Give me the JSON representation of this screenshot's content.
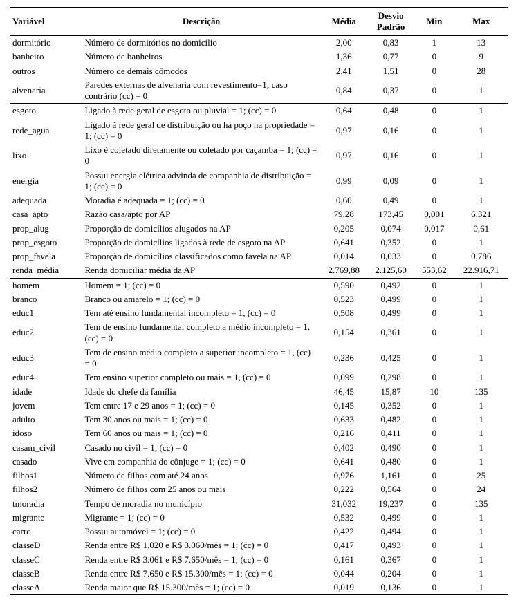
{
  "headers": {
    "variavel": "Variável",
    "descricao": "Descrição",
    "media": "Média",
    "desvio_top": "Desvio",
    "desvio_bot": "Padrão",
    "min": "Min",
    "max": "Max"
  },
  "rows": [
    {
      "var": "dormitório",
      "desc": "Número de dormitórios no domicílio",
      "media": "2,00",
      "dp": "0,83",
      "min": "1",
      "max": "13",
      "section_end": false
    },
    {
      "var": "banheiro",
      "desc": "Número de banheiros",
      "media": "1,36",
      "dp": "0,77",
      "min": "0",
      "max": "9",
      "section_end": false
    },
    {
      "var": "outros",
      "desc": "Número de demais cômodos",
      "media": "2,41",
      "dp": "1,51",
      "min": "0",
      "max": "28",
      "section_end": false
    },
    {
      "var": "alvenaria",
      "desc": "Paredes externas de alvenaria com revestimento=1; caso contrário (cc) = 0",
      "media": "0,84",
      "dp": "0,37",
      "min": "0",
      "max": "1",
      "section_end": true
    },
    {
      "var": "esgoto",
      "desc": "Ligado à rede geral de esgoto ou pluvial = 1; (cc) = 0",
      "media": "0,64",
      "dp": "0,48",
      "min": "0",
      "max": "1",
      "section_end": false
    },
    {
      "var": "rede_agua",
      "desc": "Ligado à rede geral de distribuição ou há poço na propriedade = 1; (cc) = 0",
      "media": "0,97",
      "dp": "0,16",
      "min": "0",
      "max": "1",
      "section_end": false
    },
    {
      "var": "lixo",
      "desc": "Lixo é coletado diretamente ou coletado por caçamba = 1; (cc) = 0",
      "media": "0,97",
      "dp": "0,16",
      "min": "0",
      "max": "1",
      "section_end": false
    },
    {
      "var": "energia",
      "desc": "Possui energia elétrica advinda de companhia de distribuição = 1; (cc) = 0",
      "media": "0,99",
      "dp": "0,09",
      "min": "0",
      "max": "1",
      "section_end": false
    },
    {
      "var": "adequada",
      "desc": "Moradia é adequada = 1; (cc) = 0",
      "media": "0,60",
      "dp": "0,49",
      "min": "0",
      "max": "1",
      "section_end": false
    },
    {
      "var": "casa_apto",
      "desc": "Razão casa/apto por AP",
      "media": "79,28",
      "dp": "173,45",
      "min": "0,001",
      "max": "6.321",
      "section_end": false
    },
    {
      "var": "prop_alug",
      "desc": "Proporção de domicílios alugados na AP",
      "media": "0,205",
      "dp": "0,074",
      "min": "0,017",
      "max": "0,61",
      "section_end": false
    },
    {
      "var": "prop_esgoto",
      "desc": "Proporção de domicílios ligados à rede de esgoto na AP",
      "media": "0,641",
      "dp": "0,352",
      "min": "0",
      "max": "1",
      "section_end": false
    },
    {
      "var": "prop_favela",
      "desc": "Proporção de domicílios classificados como favela na AP",
      "media": "0,014",
      "dp": "0,033",
      "min": "0",
      "max": "0,786",
      "section_end": false
    },
    {
      "var": "renda_média",
      "desc": "Renda domiciliar média da AP",
      "media": "2.769,88",
      "dp": "2.125,60",
      "min": "553,62",
      "max": "22.916,71",
      "section_end": true
    },
    {
      "var": "homem",
      "desc": "Homem = 1; (cc) = 0",
      "media": "0,590",
      "dp": "0,492",
      "min": "0",
      "max": "1",
      "section_end": false
    },
    {
      "var": "branco",
      "desc": "Branco ou amarelo = 1; (cc) = 0",
      "media": "0,523",
      "dp": "0,499",
      "min": "0",
      "max": "1",
      "section_end": false
    },
    {
      "var": "educ1",
      "desc": "Tem até ensino fundamental incompleto = 1, (cc) = 0",
      "media": "0,508",
      "dp": "0,499",
      "min": "0",
      "max": "1",
      "section_end": false
    },
    {
      "var": "educ2",
      "desc": "Tem de ensino fundamental completo a médio incompleto = 1, (cc) = 0",
      "media": "0,154",
      "dp": "0,361",
      "min": "0",
      "max": "1",
      "section_end": false
    },
    {
      "var": "educ3",
      "desc": "Tem de ensino médio completo a superior incompleto = 1, (cc) = 0",
      "media": "0,236",
      "dp": "0,425",
      "min": "0",
      "max": "1",
      "section_end": false
    },
    {
      "var": "educ4",
      "desc": "Tem ensino superior completo ou mais = 1, (cc) = 0",
      "media": "0,099",
      "dp": "0,298",
      "min": "0",
      "max": "1",
      "section_end": false
    },
    {
      "var": "idade",
      "desc": "Idade do chefe da família",
      "media": "46,45",
      "dp": "15,87",
      "min": "10",
      "max": "135",
      "section_end": false
    },
    {
      "var": "jovem",
      "desc": "Tem entre 17 e 29 anos = 1; (cc) = 0",
      "media": "0,145",
      "dp": "0,352",
      "min": "0",
      "max": "1",
      "section_end": false
    },
    {
      "var": "adulto",
      "desc": "Tem 30 anos ou mais = 1; (cc) = 0",
      "media": "0,633",
      "dp": "0,482",
      "min": "0",
      "max": "1",
      "section_end": false
    },
    {
      "var": "idoso",
      "desc": "Tem 60 anos ou mais = 1; (cc) = 0",
      "media": "0,216",
      "dp": "0,411",
      "min": "0",
      "max": "1",
      "section_end": false
    },
    {
      "var": "casam_civil",
      "desc": "Casado no civil = 1; (cc) = 0",
      "media": "0,402",
      "dp": "0,490",
      "min": "0",
      "max": "1",
      "section_end": false
    },
    {
      "var": "casado",
      "desc": "Vive em companhia do cônjuge = 1; (cc) = 0",
      "media": "0,641",
      "dp": "0,480",
      "min": "0",
      "max": "1",
      "section_end": false
    },
    {
      "var": "filhos1",
      "desc": "Número de filhos com até 24 anos",
      "media": "0,976",
      "dp": "1,161",
      "min": "0",
      "max": "25",
      "section_end": false
    },
    {
      "var": "filhos2",
      "desc": "Número de filhos com 25 anos ou mais",
      "media": "0,222",
      "dp": "0,564",
      "min": "0",
      "max": "24",
      "section_end": false
    },
    {
      "var": "tmoradia",
      "desc": "Tempo de moradia no município",
      "media": "31,032",
      "dp": "19,237",
      "min": "0",
      "max": "135",
      "section_end": false
    },
    {
      "var": "migrante",
      "desc": "Migrante = 1; (cc) = 0",
      "media": "0,532",
      "dp": "0,499",
      "min": "0",
      "max": "1",
      "section_end": false
    },
    {
      "var": "carro",
      "desc": "Possui automóvel = 1; (cc) = 0",
      "media": "0,422",
      "dp": "0,494",
      "min": "0",
      "max": "1",
      "section_end": false
    },
    {
      "var": "classeD",
      "desc": "Renda entre R$ 1.020 e R$ 3.060/mês = 1; (cc) = 0",
      "media": "0,417",
      "dp": "0,493",
      "min": "0",
      "max": "1",
      "section_end": false
    },
    {
      "var": "classeC",
      "desc": "Renda entre R$ 3.061 e R$ 7.650/mês = 1; (cc) = 0",
      "media": "0,161",
      "dp": "0,367",
      "min": "0",
      "max": "1",
      "section_end": false
    },
    {
      "var": "classeB",
      "desc": "Renda entre R$ 7.650 e R$ 15.300/mês = 1; (cc) = 0",
      "media": "0,044",
      "dp": "0,204",
      "min": "0",
      "max": "1",
      "section_end": false
    },
    {
      "var": "classeA",
      "desc": "Renda maior que R$ 15.300/mês = 1; (cc) = 0",
      "media": "0,019",
      "dp": "0,136",
      "min": "0",
      "max": "1",
      "section_end": false
    }
  ]
}
